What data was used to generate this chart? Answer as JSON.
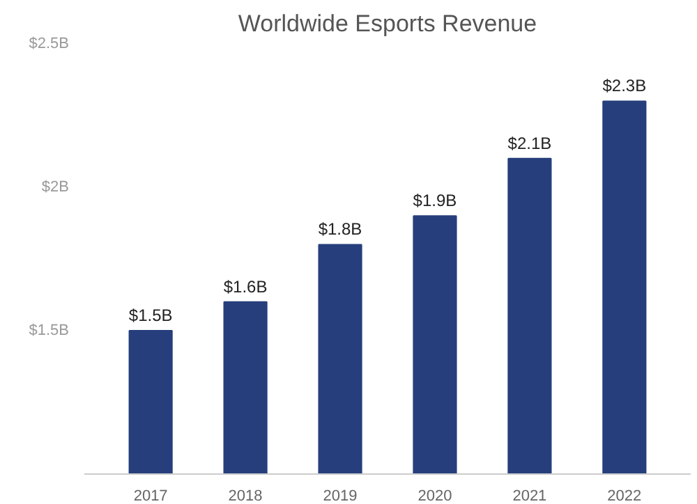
{
  "chart_data": {
    "type": "bar",
    "title": "Worldwide Esports Revenue",
    "categories": [
      "2017",
      "2018",
      "2019",
      "2020",
      "2021",
      "2022"
    ],
    "values": [
      1.5,
      1.6,
      1.8,
      1.9,
      2.1,
      2.3
    ],
    "value_labels": [
      "$1.5B",
      "$1.6B",
      "$1.8B",
      "$1.9B",
      "$2.1B",
      "$2.3B"
    ],
    "color": "#263f7c",
    "ylim": [
      1.0,
      2.5
    ],
    "yticks": [
      {
        "value": 1.5,
        "label": "$1.5B"
      },
      {
        "value": 2,
        "label": "$2B"
      },
      {
        "value": 2.5,
        "label": "$2.5B"
      }
    ],
    "grid": false
  }
}
